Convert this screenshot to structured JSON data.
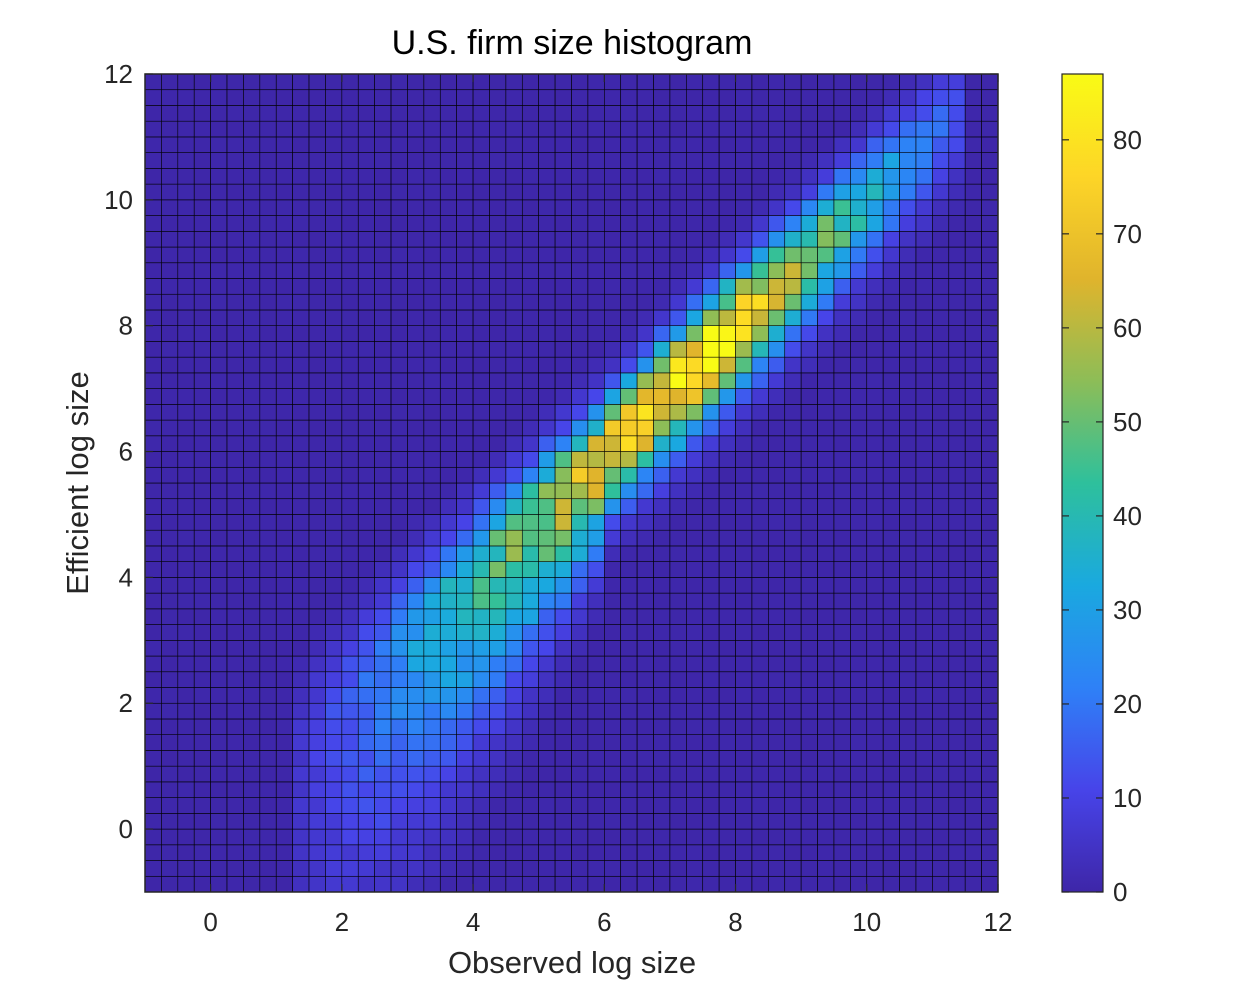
{
  "chart_data": {
    "type": "heatmap",
    "title": "U.S. firm size histogram",
    "xlabel": "Observed log size",
    "ylabel": "Efficient log size",
    "xlim": [
      -1,
      12
    ],
    "ylim": [
      -1,
      12
    ],
    "xticks": [
      0,
      2,
      4,
      6,
      8,
      10,
      12
    ],
    "yticks": [
      0,
      2,
      4,
      6,
      8,
      10,
      12
    ],
    "bins": {
      "x_start": -1,
      "y_start": -1,
      "bin_width": 0.25,
      "nx": 52,
      "ny": 52
    },
    "colorbar": {
      "limits": [
        0,
        87
      ],
      "ticks": [
        0,
        10,
        20,
        30,
        40,
        50,
        60,
        70,
        80
      ]
    },
    "colormap": [
      "#3e26a8",
      "#4744e9",
      "#2e81f7",
      "#1aa9df",
      "#2ec09c",
      "#8dbd57",
      "#e0b42c",
      "#fdd527",
      "#f9fb15"
    ],
    "edge_color": "#000000",
    "ridge": {
      "slope": 1.0,
      "intercept": 0.0,
      "peak_count": 87,
      "peak_at_x": 7.6
    },
    "notes_on_density": "Counts concentrate along the diagonal (efficient ≈ observed) between x≈1.5 and x≈11.5, peaking (~87) near observed 7.6; elsewhere counts are ~0."
  }
}
